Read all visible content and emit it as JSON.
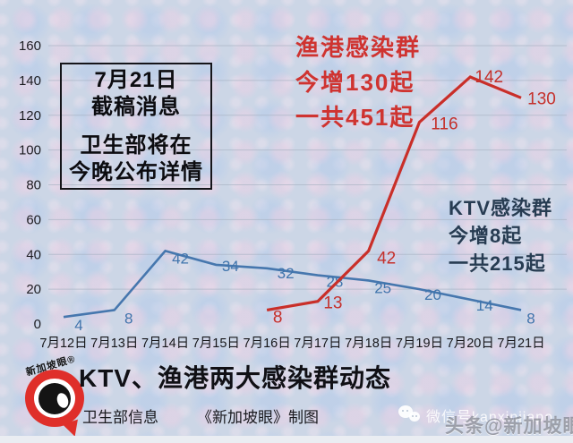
{
  "page": {
    "background": "#ccd6e6"
  },
  "chart_data": {
    "type": "line",
    "title": "KTV、渔港两大感染群动态",
    "categories": [
      "7月12日",
      "7月13日",
      "7月14日",
      "7月15日",
      "7月16日",
      "7月17日",
      "7月18日",
      "7月19日",
      "7月20日",
      "7月21日"
    ],
    "series": [
      {
        "name": "KTV感染群",
        "color": "#4677ae",
        "label_color": "#3f74ac",
        "values": [
          4,
          8,
          42,
          34,
          32,
          28,
          25,
          20,
          14,
          8
        ]
      },
      {
        "name": "渔港感染群",
        "color": "#c92f29",
        "label_color": "#c5302b",
        "values": [
          null,
          null,
          null,
          null,
          8,
          13,
          42,
          116,
          142,
          130
        ]
      }
    ],
    "ylim": [
      0,
      160
    ],
    "yticks": [
      0,
      20,
      40,
      60,
      80,
      100,
      120,
      140,
      160
    ],
    "grid": true,
    "legend_position": "none-inline-annotations"
  },
  "note_box": {
    "line1": "7月21日",
    "line2": "截稿消息",
    "line3": "卫生部将在",
    "line4": "今晚公布详情"
  },
  "annotations": {
    "yugang": {
      "line1": "渔港感染群",
      "line2": "今增130起",
      "line3": "一共451起",
      "color": "#cf3330"
    },
    "ktv": {
      "line1": "KTV感染群",
      "line2": "今增8起",
      "line3": "一共215起",
      "color": "#273c52"
    }
  },
  "footer": {
    "title": "KTV、渔港两大感染群动态",
    "source": "卫生部信息",
    "credit": "《新加坡眼》制图"
  },
  "logo": {
    "brand": "新加坡眼®"
  },
  "watermarks": {
    "wechat_id": "微信号kanxinjiapo",
    "toutiao": "头条@新加坡眼"
  }
}
